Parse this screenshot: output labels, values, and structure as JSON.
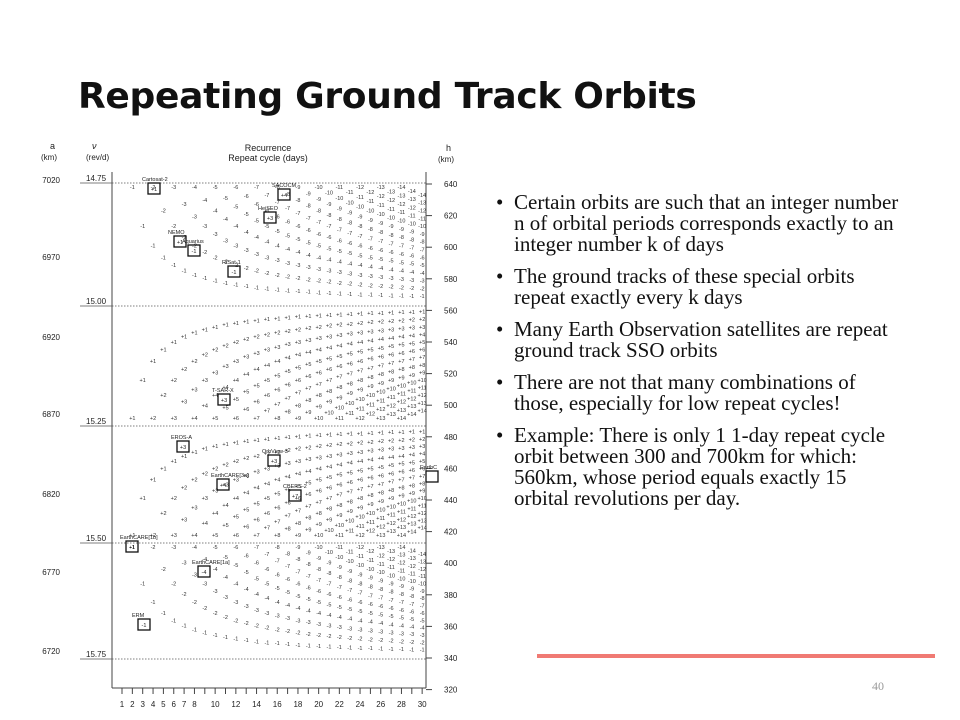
{
  "slide": {
    "title": "Repeating Ground Track Orbits",
    "page_number": "40",
    "accent_color": "#f07a73",
    "bullets": [
      "Certain orbits are such that an integer number n of orbital periods corresponds exactly to an integer number k of days",
      "The ground tracks of these special orbits repeat exactly every k days",
      "Many Earth Observation satellites are repeat ground track SSO orbits",
      "There are not that many combinations of those, especially for low repeat cycles!",
      "Example: There is only 1 1-day repeat cycle orbit between 300 and 700km for which: 560km, whose period equals exactly 15 orbital revolutions per day."
    ]
  },
  "figure": {
    "header": {
      "a_symbol": "a",
      "a_unit": "(km)",
      "nu_symbol": "ν",
      "nu_unit": "(rev/d)",
      "title_line1": "Recurrence",
      "title_line2": "Repeat cycle (days)",
      "h_symbol": "h",
      "h_unit": "(km)"
    },
    "left_ticks": [
      "7020",
      "6970",
      "6920",
      "6870",
      "6820",
      "6770",
      "6720"
    ],
    "right_ticks": [
      "640",
      "620",
      "600",
      "580",
      "560",
      "540",
      "520",
      "500",
      "480",
      "460",
      "440",
      "420",
      "400",
      "380",
      "360",
      "340",
      "320"
    ],
    "nu_lines": [
      "14.75",
      "15.00",
      "15.25",
      "15.50",
      "15.75"
    ],
    "bottom_ticks": [
      "1",
      "2",
      "3",
      "4",
      "5",
      "6",
      "7",
      "8",
      "10",
      "12",
      "14",
      "16",
      "18",
      "20",
      "22",
      "24",
      "26",
      "28",
      "30"
    ],
    "satellites": [
      {
        "name": "Cartosat-2",
        "mark": "+1"
      },
      {
        "name": "SACOCM",
        "mark": "+4"
      },
      {
        "name": "HejSEO",
        "mark": "+3"
      },
      {
        "name": "NEMO",
        "mark": "+1"
      },
      {
        "name": "Aquarius",
        "mark": "-1"
      },
      {
        "name": "RISat-1",
        "mark": "-1"
      },
      {
        "name": "T-SAR-X",
        "mark": "+3"
      },
      {
        "name": "EROS-A",
        "mark": "+3"
      },
      {
        "name": "OrbView-3",
        "mark": "+3"
      },
      {
        "name": "EarthCARE[3a]",
        "mark": "+4"
      },
      {
        "name": "CBERS-2",
        "mark": "+7"
      },
      {
        "name": "EarthC",
        "mark": ""
      },
      {
        "name": "EarthCARE[1b]",
        "mark": "+1"
      },
      {
        "name": "EarthCARE[1a]",
        "mark": "-4"
      },
      {
        "name": "ERM",
        "mark": "-1"
      }
    ]
  }
}
